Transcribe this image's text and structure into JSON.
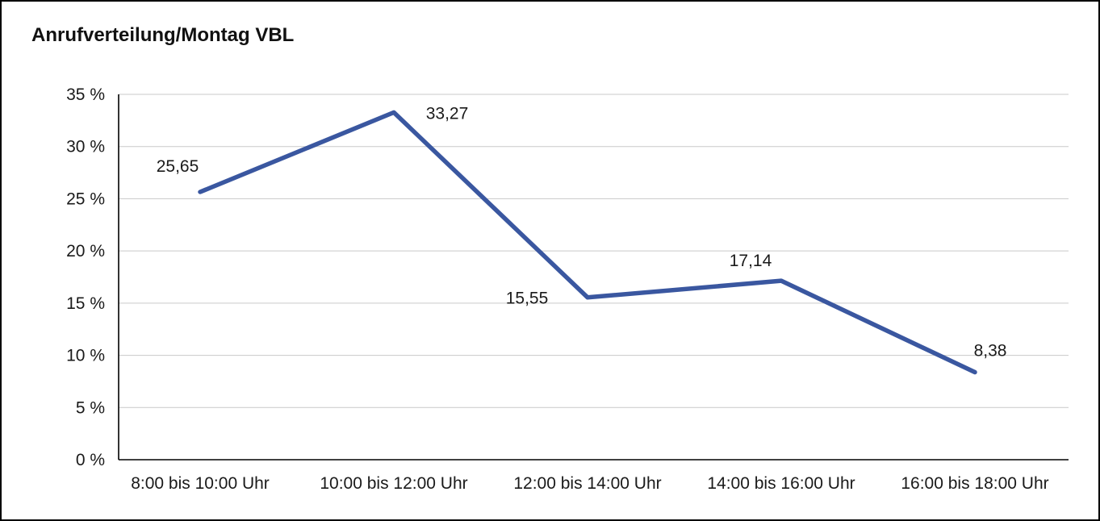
{
  "title": "Anrufverteilung/Montag VBL",
  "chart_data": {
    "type": "line",
    "title": "Anrufverteilung/Montag VBL",
    "categories": [
      "8:00 bis 10:00 Uhr",
      "10:00 bis 12:00 Uhr",
      "12:00 bis 14:00 Uhr",
      "14:00 bis 16:00 Uhr",
      "16:00 bis 18:00 Uhr"
    ],
    "values": [
      25.65,
      33.27,
      15.55,
      17.14,
      8.38
    ],
    "value_labels": [
      "25,65",
      "33,27",
      "15,55",
      "17,14",
      "8,38"
    ],
    "xlabel": "",
    "ylabel": "",
    "ylim": [
      0,
      35
    ],
    "ytick_step": 5,
    "ytick_labels": [
      "0 %",
      "5 %",
      "10 %",
      "15 %",
      "20 %",
      "25 %",
      "30 %",
      "35 %"
    ],
    "grid": true,
    "legend": "none",
    "line_color": "#3A57A0",
    "grid_color": "#c9c9c9",
    "axis_color": "#000000"
  }
}
